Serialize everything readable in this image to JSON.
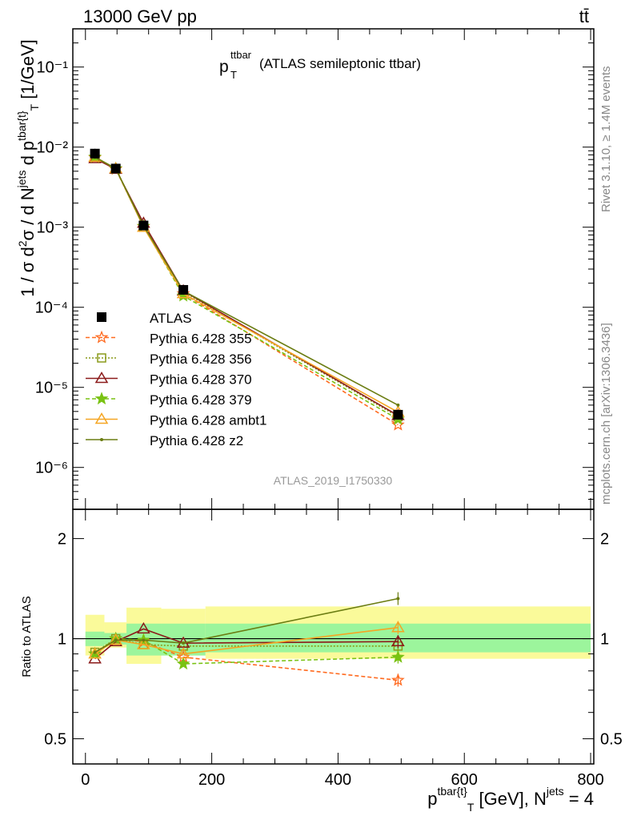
{
  "header": {
    "left": "13000 GeV pp",
    "right": "tt̄"
  },
  "side_labels": {
    "rivet": "Rivet 3.1.10, ≥ 1.4M events",
    "mcplots": "mcplots.cern.ch [arXiv:1306.3436]"
  },
  "analysis_id": "ATLAS_2019_I1750330",
  "main_title": {
    "p": "p",
    "sup": "ttbar",
    "sub": "T",
    "rest": "(ATLAS semileptonic ttbar)"
  },
  "y_label": "1 / σ d²σ / d Nʲᵉᵗˢ d pᵀ [1/GeV]",
  "ratio_label": "Ratio to ATLAS",
  "x_label": "p T [GeV], N = 4",
  "colors": {
    "data": "#000000",
    "band_inner": "#9cf59c",
    "band_outer": "#fafa9a"
  },
  "chart_data": [
    {
      "type": "line",
      "yscale": "log",
      "xlim": [
        -20,
        805
      ],
      "ylim": [
        3e-07,
        0.3
      ],
      "x_ticks": [
        0,
        200,
        400,
        600,
        800
      ],
      "y_tick_labels": [
        "10⁻⁶",
        "10⁻⁵",
        "10⁻⁴",
        "10⁻³",
        "10⁻²",
        "10⁻¹"
      ],
      "bins": [
        [
          0,
          30
        ],
        [
          30,
          65
        ],
        [
          65,
          120
        ],
        [
          120,
          190
        ],
        [
          190,
          800
        ]
      ],
      "x": [
        15,
        48,
        92,
        155,
        495
      ],
      "data": {
        "name": "ATLAS",
        "values": [
          0.0083,
          0.0054,
          0.00105,
          0.000165,
          4.55e-06
        ]
      },
      "series": [
        {
          "name": "Pythia 6.428 355",
          "color": "#ff6a1f",
          "dash": "5,3",
          "marker": "star-open",
          "values": [
            0.0074,
            0.0053,
            0.00102,
            0.000148,
            3.4e-06
          ]
        },
        {
          "name": "Pythia 6.428 356",
          "color": "#8a9a1a",
          "dash": "2,2",
          "marker": "square-open",
          "values": [
            0.0075,
            0.0054,
            0.001,
            0.000157,
            4.3e-06
          ]
        },
        {
          "name": "Pythia 6.428 370",
          "color": "#8b1a1a",
          "dash": "",
          "marker": "triangle-open",
          "values": [
            0.0072,
            0.0053,
            0.00112,
            0.00016,
            4.45e-06
          ]
        },
        {
          "name": "Pythia 6.428 379",
          "color": "#79c212",
          "dash": "5,3",
          "marker": "star-filled",
          "values": [
            0.0075,
            0.0054,
            0.00103,
            0.000139,
            4e-06
          ]
        },
        {
          "name": "Pythia 6.428 ambt1",
          "color": "#f5a623",
          "dash": "",
          "marker": "triangle-open",
          "values": [
            0.0075,
            0.0054,
            0.001,
            0.000148,
            4.9e-06
          ]
        },
        {
          "name": "Pythia 6.428 z2",
          "color": "#6b7d12",
          "dash": "",
          "marker": "dot",
          "values": [
            0.0075,
            0.0054,
            0.00104,
            0.00016,
            6e-06
          ]
        }
      ]
    },
    {
      "type": "line",
      "yscale": "log",
      "ylim": [
        0.42,
        2.45
      ],
      "y_ticks": [
        0.5,
        1,
        2
      ],
      "y_tick_labels": [
        "0.5",
        "1",
        "2"
      ],
      "band_inner": [
        [
          0.95,
          1.05
        ],
        [
          0.96,
          1.04
        ],
        [
          0.89,
          1.11
        ],
        [
          0.89,
          1.11
        ],
        [
          0.91,
          1.11
        ]
      ],
      "band_outer": [
        [
          0.89,
          1.18
        ],
        [
          0.94,
          1.12
        ],
        [
          0.84,
          1.24
        ],
        [
          0.89,
          1.23
        ],
        [
          0.87,
          1.25
        ]
      ],
      "ratios": [
        {
          "name": "Pythia 6.428 355",
          "values": [
            0.9,
            1.0,
            0.98,
            0.88,
            0.75
          ]
        },
        {
          "name": "Pythia 6.428 356",
          "values": [
            0.91,
            1.0,
            0.96,
            0.95,
            0.95
          ]
        },
        {
          "name": "Pythia 6.428 370",
          "values": [
            0.87,
            0.98,
            1.07,
            0.97,
            0.98
          ]
        },
        {
          "name": "Pythia 6.428 379",
          "values": [
            0.9,
            1.0,
            0.99,
            0.84,
            0.88
          ]
        },
        {
          "name": "Pythia 6.428 ambt1",
          "values": [
            0.9,
            0.99,
            0.96,
            0.9,
            1.08
          ]
        },
        {
          "name": "Pythia 6.428 z2",
          "values": [
            0.91,
            0.99,
            0.99,
            0.97,
            1.32
          ]
        }
      ]
    }
  ]
}
